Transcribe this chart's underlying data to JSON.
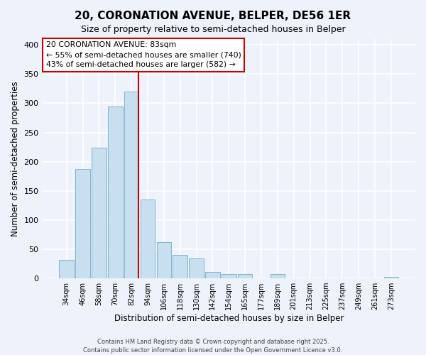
{
  "title": "20, CORONATION AVENUE, BELPER, DE56 1ER",
  "subtitle": "Size of property relative to semi-detached houses in Belper",
  "xlabel": "Distribution of semi-detached houses by size in Belper",
  "ylabel": "Number of semi-detached properties",
  "bar_labels": [
    "34sqm",
    "46sqm",
    "58sqm",
    "70sqm",
    "82sqm",
    "94sqm",
    "106sqm",
    "118sqm",
    "130sqm",
    "142sqm",
    "154sqm",
    "165sqm",
    "177sqm",
    "189sqm",
    "201sqm",
    "213sqm",
    "225sqm",
    "237sqm",
    "249sqm",
    "261sqm",
    "273sqm"
  ],
  "bar_values": [
    32,
    188,
    224,
    295,
    320,
    135,
    62,
    40,
    34,
    11,
    8,
    7,
    0,
    8,
    0,
    0,
    0,
    0,
    0,
    0,
    3
  ],
  "bar_color": "#c8dff0",
  "bar_edge_color": "#7fb3d3",
  "highlight_bar_index": 4,
  "annotation_title": "20 CORONATION AVENUE: 83sqm",
  "annotation_line1": "← 55% of semi-detached houses are smaller (740)",
  "annotation_line2": "43% of semi-detached houses are larger (582) →",
  "annotation_box_color": "#ffffff",
  "annotation_box_edge_color": "#cc0000",
  "vline_color": "#cc0000",
  "ylim": [
    0,
    410
  ],
  "yticks": [
    0,
    50,
    100,
    150,
    200,
    250,
    300,
    350,
    400
  ],
  "background_color": "#eef2fa",
  "grid_color": "#ffffff",
  "title_fontsize": 11,
  "subtitle_fontsize": 9,
  "footer_line1": "Contains HM Land Registry data © Crown copyright and database right 2025.",
  "footer_line2": "Contains public sector information licensed under the Open Government Licence v3.0."
}
